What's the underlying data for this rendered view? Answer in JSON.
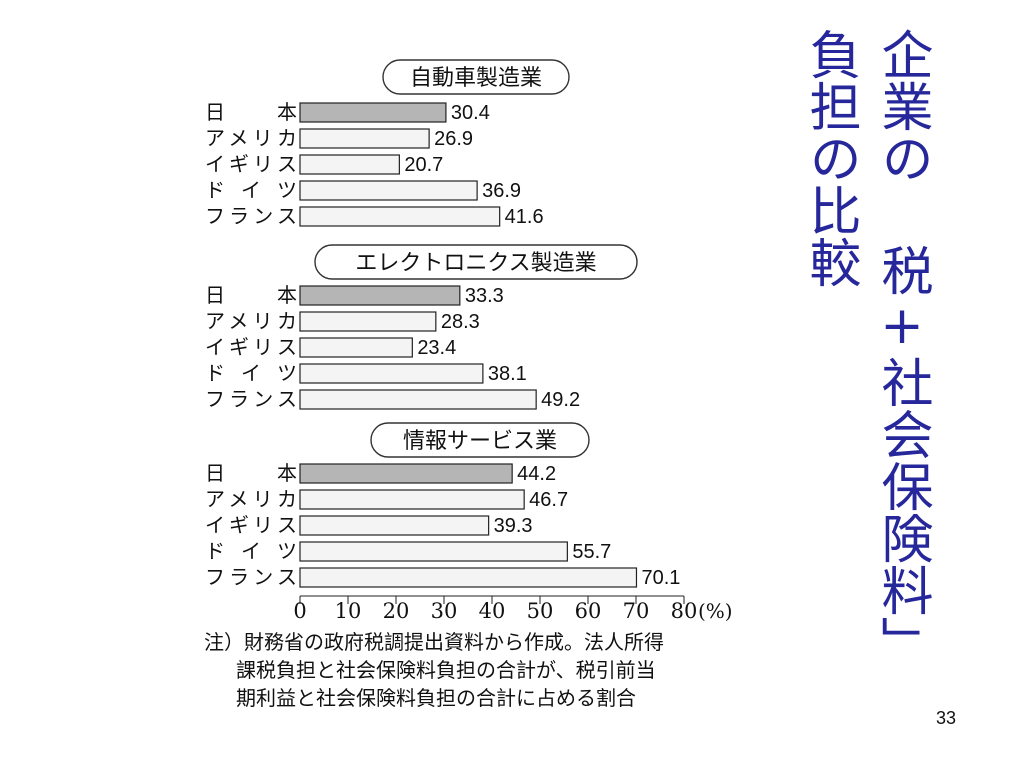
{
  "title": {
    "line1": "企業の 税+社会保険料」",
    "line2": "負担の比較"
  },
  "chart_data": {
    "type": "bar",
    "orientation": "horizontal",
    "unit": "(%)",
    "xlim": [
      0,
      80
    ],
    "ticks": [
      0,
      10,
      20,
      30,
      40,
      50,
      60,
      70,
      80
    ],
    "tick_suffix_last": "(%)",
    "panels": [
      {
        "title": "自動車製造業",
        "categories": [
          "日　本",
          "アメリカ",
          "イギリス",
          "ド イ ツ",
          "フランス"
        ],
        "values": [
          30.4,
          26.9,
          20.7,
          36.9,
          41.6
        ]
      },
      {
        "title": "エレクトロニクス製造業",
        "categories": [
          "日　本",
          "アメリカ",
          "イギリス",
          "ド イ ツ",
          "フランス"
        ],
        "values": [
          33.3,
          28.3,
          23.4,
          38.1,
          49.2
        ]
      },
      {
        "title": "情報サービス業",
        "categories": [
          "日　本",
          "アメリカ",
          "イギリス",
          "ド イ ツ",
          "フランス"
        ],
        "values": [
          44.2,
          46.7,
          39.3,
          55.7,
          70.1
        ]
      }
    ],
    "colors": {
      "highlight": "#b5b5b5",
      "default": "#f4f4f4",
      "stroke": "#222222"
    }
  },
  "note": {
    "line1": "注）財務省の政府税調提出資料から作成。法人所得",
    "line2": "課税負担と社会保険料負担の合計が、税引前当",
    "line3": "期利益と社会保険料負担の合計に占める割合"
  },
  "page_number": "33"
}
